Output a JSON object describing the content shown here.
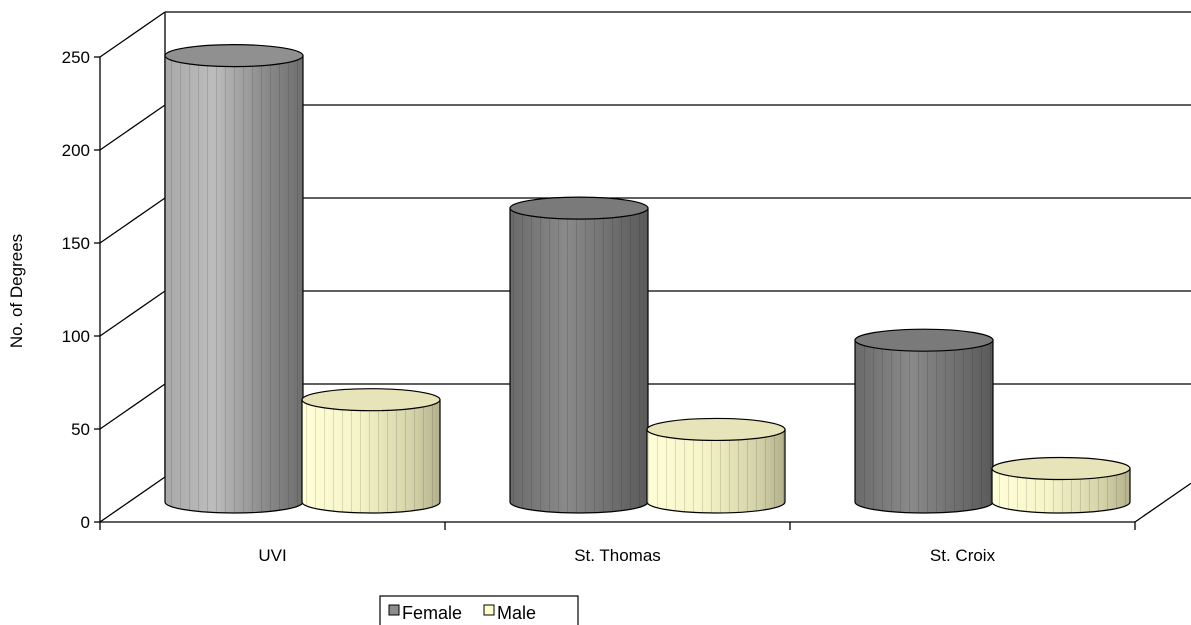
{
  "chart_data": {
    "type": "bar",
    "style": "3d-cylinder",
    "categories": [
      "UVI",
      "St. Thomas",
      "St. Croix"
    ],
    "series": [
      {
        "name": "Female",
        "values": [
          240,
          158,
          87
        ],
        "color": "#8c8c8c"
      },
      {
        "name": "Male",
        "values": [
          55,
          39,
          18
        ],
        "color": "#ffffcc"
      }
    ],
    "ylabel": "No. of Degrees",
    "xlabel": "",
    "ylim": [
      0,
      250
    ],
    "yticks": [
      0,
      50,
      100,
      150,
      200,
      250
    ],
    "grid": true,
    "legend_position": "bottom"
  }
}
